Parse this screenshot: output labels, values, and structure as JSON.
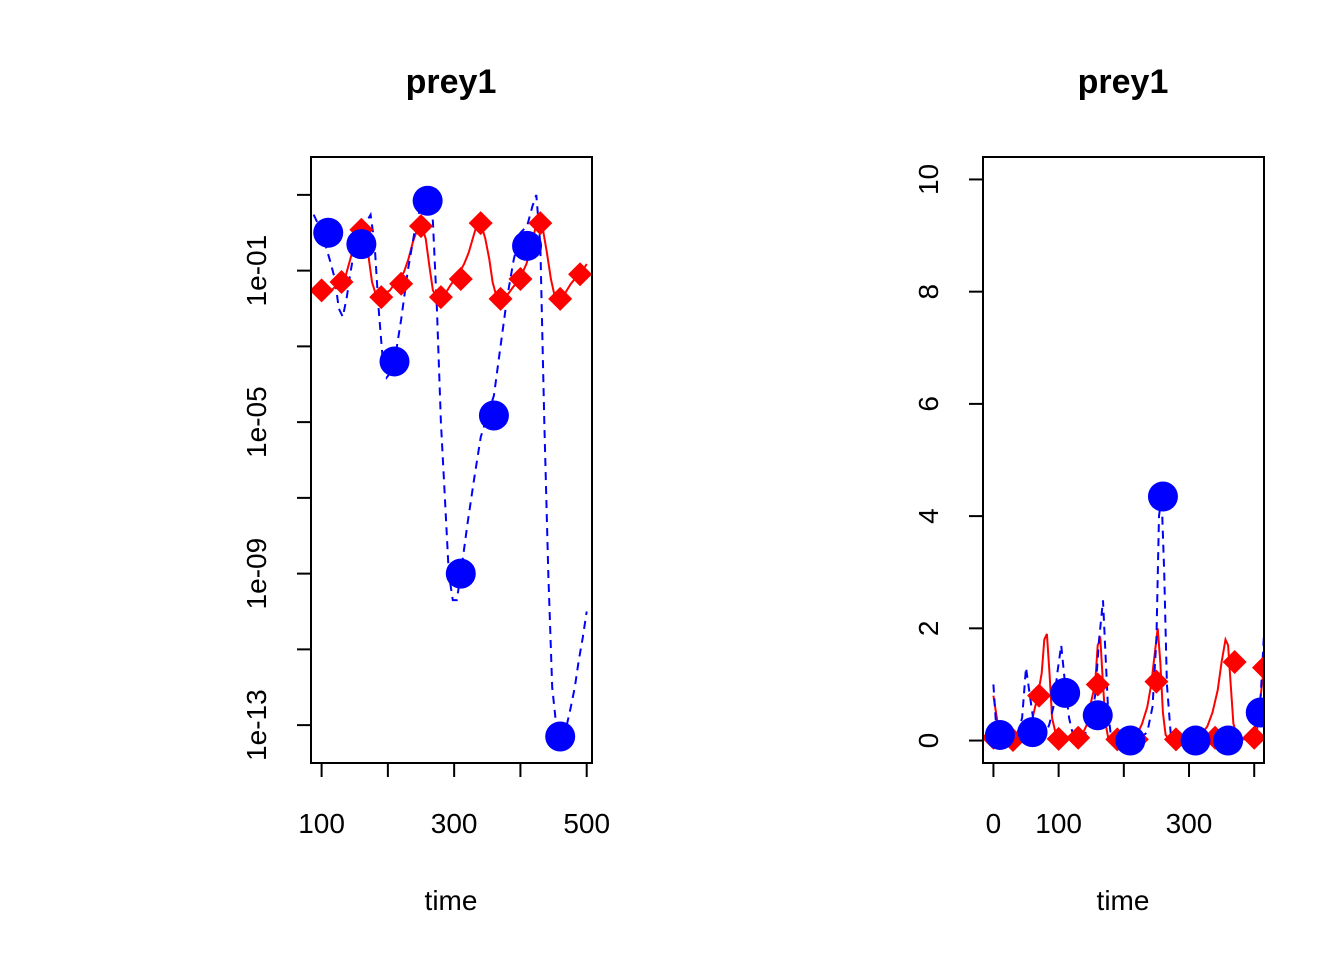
{
  "colors": {
    "prey_line": "#ff0000",
    "prey_marker": "#ff0000",
    "dashed": "#0000ff",
    "points": "#0000ff"
  },
  "chart_data": [
    {
      "type": "line",
      "title": "prey1",
      "xlabel": "time",
      "ylabel": "",
      "y_scale": "log10",
      "xlim": [
        84,
        508
      ],
      "ylim": [
        1e-14,
        100.0
      ],
      "x_ticks": [
        100,
        200,
        300,
        400,
        500
      ],
      "x_tick_labels": [
        "100",
        "",
        "300",
        "",
        "500"
      ],
      "y_ticks": [
        10.0,
        0.1,
        0.001,
        1e-05,
        1e-07,
        1e-09,
        1e-11,
        1e-13
      ],
      "y_tick_labels": [
        "",
        "1e-01",
        "",
        "1e-05",
        "",
        "1e-09",
        "",
        "1e-13"
      ],
      "series": [
        {
          "style": "solid",
          "marker": "diamond",
          "x": [
            100,
            108,
            115,
            122,
            130,
            137,
            146,
            152,
            158,
            164,
            170,
            176,
            183,
            189,
            196,
            203,
            210,
            217,
            224,
            231,
            238,
            245,
            251,
            257,
            263,
            268,
            274,
            280,
            287,
            294,
            301,
            308,
            315,
            322,
            329,
            335,
            341,
            347,
            353,
            358,
            364,
            370,
            376,
            382,
            388,
            395,
            402,
            409,
            416,
            422,
            428,
            434,
            440,
            446,
            452,
            458,
            464,
            470,
            476,
            482,
            488,
            494,
            500
          ],
          "y": [
            0.03,
            0.025,
            0.03,
            0.04,
            0.05,
            0.08,
            0.3,
            0.8,
            1.2,
            1.0,
            0.3,
            0.05,
            0.02,
            0.02,
            0.025,
            0.03,
            0.045,
            0.06,
            0.09,
            0.2,
            0.6,
            1.3,
            1.5,
            0.7,
            0.12,
            0.03,
            0.02,
            0.02,
            0.025,
            0.04,
            0.06,
            0.09,
            0.15,
            0.3,
            0.8,
            1.8,
            1.6,
            0.7,
            0.2,
            0.05,
            0.02,
            0.018,
            0.02,
            0.025,
            0.035,
            0.05,
            0.08,
            0.15,
            0.4,
            1.2,
            1.8,
            1.2,
            0.3,
            0.06,
            0.02,
            0.018,
            0.02,
            0.03,
            0.045,
            0.06,
            0.08,
            0.1,
            0.15
          ],
          "markers": {
            "x": [
              100,
              130,
              160,
              190,
              220,
              250,
              280,
              310,
              340,
              370,
              400,
              430,
              460,
              490
            ],
            "y": [
              0.03,
              0.05,
              1.2,
              0.02,
              0.045,
              1.5,
              0.02,
              0.06,
              1.8,
              0.018,
              0.06,
              1.8,
              0.018,
              0.08
            ]
          }
        },
        {
          "style": "dashed",
          "marker": "circle",
          "x": [
            88,
            96,
            104,
            112,
            120,
            126,
            132,
            138,
            144,
            150,
            156,
            162,
            168,
            174,
            180,
            186,
            192,
            198,
            204,
            210,
            220,
            230,
            240,
            248,
            256,
            262,
            268,
            274,
            280,
            286,
            292,
            298,
            304,
            310,
            320,
            330,
            340,
            350,
            360,
            370,
            380,
            390,
            400,
            410,
            418,
            424,
            430,
            436,
            442,
            448,
            454,
            458,
            464,
            470,
            476,
            482,
            488,
            494,
            500
          ],
          "y": [
            3.0,
            1.5,
            0.6,
            0.2,
            0.06,
            0.01,
            0.006,
            0.02,
            0.1,
            0.4,
            1.0,
            1.5,
            2.0,
            3.0,
            0.5,
            0.01,
            0.0005,
            0.00015,
            0.0002,
            0.0004,
            0.005,
            0.1,
            1.0,
            4.0,
            8.0,
            8.0,
            2.0,
            0.01,
            1e-05,
            1e-07,
            1e-09,
            2e-10,
            2e-10,
            1e-09,
            2e-08,
            3e-07,
            4e-06,
            1.5e-05,
            5e-05,
            0.001,
            0.02,
            0.2,
            1.0,
            1.5,
            5.0,
            10.0,
            0.5,
            1e-05,
            1e-09,
            1e-12,
            1e-13,
            1e-13,
            5e-14,
            1e-13,
            3e-13,
            1e-12,
            5e-12,
            2e-11,
            1e-10
          ],
          "markers": {
            "x": [
              110,
              160,
              210,
              260,
              310,
              360,
              410,
              460
            ],
            "y": [
              1.0,
              0.5,
              0.0004,
              7.0,
              1e-09,
              1.5e-05,
              0.45,
              5e-14
            ]
          }
        }
      ]
    },
    {
      "type": "line",
      "title": "prey1",
      "xlabel": "time",
      "ylabel": "",
      "y_scale": "linear",
      "xlim": [
        -16,
        415
      ],
      "ylim": [
        -0.4,
        10.4
      ],
      "x_ticks": [
        0,
        100,
        200,
        300,
        400
      ],
      "x_tick_labels": [
        "0",
        "100",
        "",
        "300",
        ""
      ],
      "y_ticks": [
        0,
        2,
        4,
        6,
        8,
        10
      ],
      "y_tick_labels": [
        "0",
        "2",
        "4",
        "6",
        "8",
        "10"
      ],
      "series": [
        {
          "style": "solid",
          "marker": "diamond",
          "x": [
            0,
            8,
            15,
            22,
            30,
            38,
            45,
            52,
            60,
            68,
            74,
            78,
            82,
            86,
            90,
            96,
            102,
            110,
            120,
            128,
            136,
            144,
            150,
            156,
            160,
            164,
            168,
            172,
            176,
            182,
            188,
            196,
            204,
            212,
            220,
            228,
            236,
            242,
            248,
            252,
            256,
            260,
            264,
            270,
            278,
            288,
            298,
            308,
            318,
            328,
            336,
            344,
            350,
            356,
            360,
            364,
            368,
            374,
            382,
            390,
            398,
            404,
            410,
            415
          ],
          "y": [
            0.8,
            0.2,
            0.05,
            0.02,
            0.01,
            0.02,
            0.05,
            0.15,
            0.4,
            0.8,
            1.2,
            1.8,
            1.9,
            1.2,
            0.4,
            0.1,
            0.03,
            0.02,
            0.02,
            0.04,
            0.1,
            0.3,
            0.7,
            1.0,
            1.7,
            1.8,
            1.0,
            0.3,
            0.05,
            0.02,
            0.01,
            0.01,
            0.02,
            0.05,
            0.1,
            0.3,
            0.6,
            1.0,
            1.6,
            2.0,
            1.4,
            0.5,
            0.1,
            0.02,
            0.01,
            0.01,
            0.02,
            0.04,
            0.1,
            0.25,
            0.5,
            0.9,
            1.4,
            1.8,
            1.7,
            1.0,
            0.3,
            0.06,
            0.02,
            0.02,
            0.05,
            0.15,
            0.8,
            1.3
          ],
          "markers": {
            "x": [
              0,
              30,
              70,
              100,
              130,
              160,
              190,
              220,
              250,
              280,
              310,
              340,
              370,
              400,
              415
            ],
            "y": [
              0.05,
              0.01,
              0.8,
              0.03,
              0.05,
              1.0,
              0.02,
              0.02,
              1.05,
              0.02,
              0.02,
              0.05,
              1.4,
              0.05,
              1.3
            ]
          }
        },
        {
          "style": "dashed",
          "marker": "circle",
          "x": [
            0,
            4,
            10,
            20,
            28,
            36,
            44,
            50,
            56,
            62,
            68,
            74,
            80,
            86,
            92,
            98,
            104,
            110,
            116,
            122,
            130,
            140,
            148,
            156,
            162,
            168,
            172,
            176,
            180,
            186,
            196,
            206,
            216,
            226,
            236,
            244,
            250,
            254,
            258,
            262,
            266,
            272,
            282,
            292,
            302,
            312,
            324,
            336,
            348,
            360,
            372,
            384,
            396,
            404,
            410,
            415
          ],
          "y": [
            1.0,
            0.3,
            0.1,
            0.05,
            0.05,
            0.1,
            0.4,
            1.3,
            0.8,
            0.3,
            0.1,
            0.05,
            0.1,
            0.3,
            0.6,
            1.2,
            1.7,
            1.0,
            0.4,
            0.1,
            0.05,
            0.1,
            0.3,
            0.8,
            1.8,
            2.5,
            1.5,
            0.5,
            0.1,
            0.02,
            0.01,
            0.01,
            0.02,
            0.05,
            0.15,
            0.6,
            1.8,
            4.0,
            4.35,
            3.0,
            1.0,
            0.1,
            0.02,
            0.01,
            0.01,
            0.01,
            0.01,
            0.01,
            0.01,
            0.01,
            0.02,
            0.05,
            0.1,
            0.3,
            0.8,
            1.9
          ],
          "markers": {
            "x": [
              10,
              60,
              110,
              160,
              210,
              260,
              310,
              360,
              410
            ],
            "y": [
              0.1,
              0.15,
              0.85,
              0.45,
              0.0,
              4.35,
              0.0,
              0.0,
              0.5
            ]
          }
        }
      ]
    }
  ]
}
